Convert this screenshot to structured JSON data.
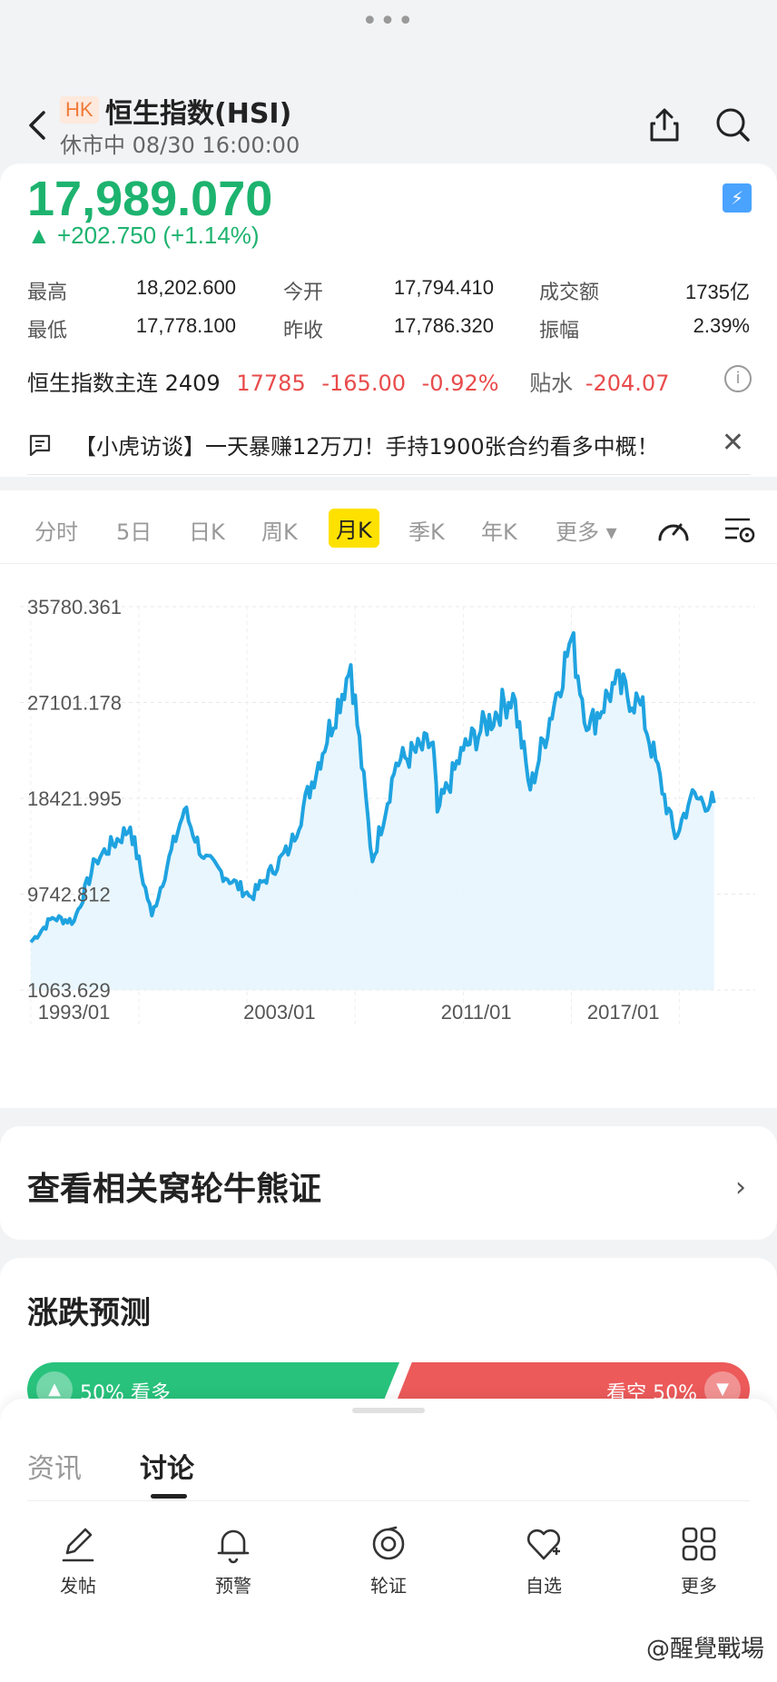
{
  "header": {
    "grabber": "•••",
    "market_badge": "HK",
    "title": "恒生指数(HSI)",
    "status": "休市中 08/30 16:00:00"
  },
  "quote": {
    "price": "17,989.070",
    "change": "▲ +202.750 (+1.14%)",
    "price_color": "#1db36f",
    "stats": [
      {
        "label": "最高",
        "value": "18,202.600"
      },
      {
        "label": "今开",
        "value": "17,794.410"
      },
      {
        "label": "成交额",
        "value": "1735亿"
      },
      {
        "label": "最低",
        "value": "17,778.100"
      },
      {
        "label": "昨收",
        "value": "17,786.320"
      },
      {
        "label": "振幅",
        "value": "2.39%"
      }
    ],
    "futures": {
      "name": "恒生指数主连 2409",
      "price": "17785",
      "change": "-165.00",
      "pct": "-0.92%",
      "discount_label": "贴水",
      "discount": "-204.07"
    }
  },
  "news": {
    "text": "【小虎访谈】一天暴赚12万刀！手持1900张合约看多中概！"
  },
  "chart_tabs": [
    {
      "label": "分时"
    },
    {
      "label": "5日"
    },
    {
      "label": "日K"
    },
    {
      "label": "周K"
    },
    {
      "label": "月K"
    },
    {
      "label": "季K"
    },
    {
      "label": "年K"
    },
    {
      "label": "更多 ▾"
    }
  ],
  "chart_data": {
    "type": "area",
    "y_ticks": [
      "35780.361",
      "27101.178",
      "18421.995",
      "9742.812",
      "1063.629"
    ],
    "x_ticks": [
      "1993/01",
      "2003/01",
      "2011/01",
      "2017/01"
    ],
    "ylim": [
      1063.629,
      35780.361
    ],
    "x": [
      1993.0,
      1994.0,
      1995.0,
      1996.0,
      1997.6,
      1998.6,
      2000.1,
      2001.0,
      2003.2,
      2005.0,
      2007.8,
      2008.8,
      2009.9,
      2011.6,
      2011.8,
      2013.0,
      2015.3,
      2016.1,
      2018.0,
      2018.8,
      2020.0,
      2021.2,
      2022.8,
      2023.5,
      2024.6
    ],
    "y": [
      5400,
      7600,
      7300,
      12800,
      15800,
      7800,
      17400,
      13000,
      9500,
      14000,
      30500,
      12700,
      21600,
      23500,
      17200,
      22800,
      27900,
      19200,
      32900,
      24700,
      28800,
      26900,
      14800,
      18500,
      17990
    ],
    "line_color": "#1fa3e0"
  },
  "link_card": {
    "label": "查看相关窝轮牛熊证"
  },
  "prediction": {
    "title": "涨跌预测",
    "bull": "50%  看多",
    "bear": "看空  50%"
  },
  "sheet": {
    "tab_inactive": "资讯",
    "tab_active": "讨论"
  },
  "bottom_nav": [
    {
      "label": "发帖",
      "icon": "pencil-icon"
    },
    {
      "label": "预警",
      "icon": "bell-icon"
    },
    {
      "label": "轮证",
      "icon": "warrant-icon"
    },
    {
      "label": "自选",
      "icon": "heart-plus-icon"
    },
    {
      "label": "更多",
      "icon": "grid-icon"
    }
  ],
  "watermark": "@醒覺戰場"
}
